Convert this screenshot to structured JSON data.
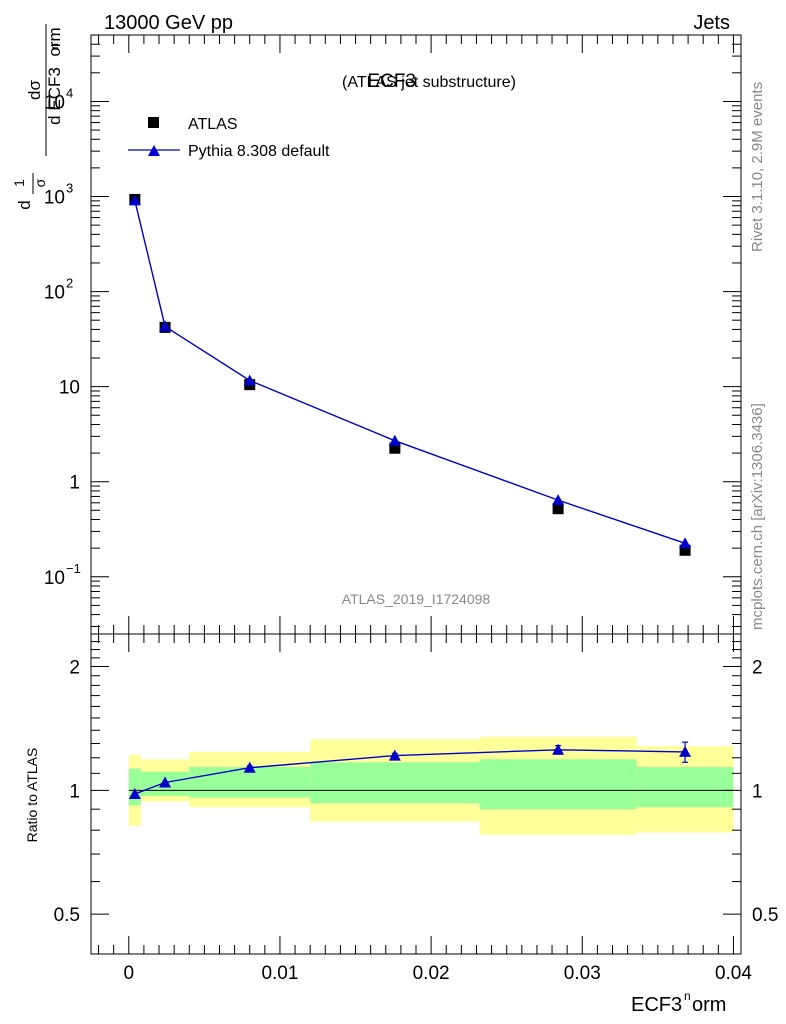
{
  "header": {
    "left_label": "13000 GeV pp",
    "right_label": "Jets"
  },
  "side_labels": {
    "rivet": "Rivet 3.1.10,  2.9M events",
    "mcplots": "mcplots.cern.ch [arXiv:1306.3436]"
  },
  "chart_data": [
    {
      "type": "scatter",
      "panel": "main",
      "title": "ECF3",
      "subtitle": "(ATLAS jet substructure)",
      "watermark": "ATLAS_2019_I1724098",
      "ylabel_parts": {
        "frac_top": "1",
        "frac_bottom": "σ",
        "d1": "d",
        "dsigma": "dσ",
        "denominator": "d ECF3",
        "sup": "n",
        "suffix": "orm"
      },
      "xlim": [
        -0.0025,
        0.0405
      ],
      "ylim": [
        0.025,
        50000
      ],
      "yscale": "log",
      "yticks": [
        {
          "value": 0.1,
          "label": "10",
          "sup": "−1"
        },
        {
          "value": 1,
          "label": "1",
          "sup": ""
        },
        {
          "value": 10,
          "label": "10",
          "sup": ""
        },
        {
          "value": 100,
          "label": "10",
          "sup": "2"
        },
        {
          "value": 1000,
          "label": "10",
          "sup": "3"
        },
        {
          "value": 10000,
          "label": "10",
          "sup": "4"
        }
      ],
      "legend_position": "top-left",
      "series": [
        {
          "name": "ATLAS",
          "marker": "square",
          "color": "#000000",
          "x": [
            0.0004,
            0.0024,
            0.008,
            0.0176,
            0.0284,
            0.0368
          ],
          "y": [
            930,
            42,
            10.5,
            2.25,
            0.52,
            0.19
          ]
        },
        {
          "name": "Pythia 8.308 default",
          "marker": "triangle",
          "color": "#0000cc",
          "x": [
            0.0004,
            0.0024,
            0.008,
            0.0176,
            0.0284,
            0.0368
          ],
          "y": [
            910,
            43,
            11.6,
            2.7,
            0.64,
            0.225
          ]
        }
      ]
    },
    {
      "type": "line",
      "panel": "ratio",
      "ylabel": "Ratio to ATLAS",
      "xlabel_parts": {
        "main": "ECF3",
        "sup": "n",
        "suffix": "orm"
      },
      "xlim": [
        -0.0025,
        0.0405
      ],
      "ylim": [
        0.4,
        2.4
      ],
      "yscale": "log",
      "yticks": [
        {
          "value": 0.5,
          "label": "0.5"
        },
        {
          "value": 1,
          "label": "1"
        },
        {
          "value": 2,
          "label": "2"
        }
      ],
      "xticks": [
        {
          "value": 0,
          "label": "0"
        },
        {
          "value": 0.01,
          "label": "0.01"
        },
        {
          "value": 0.02,
          "label": "0.02"
        },
        {
          "value": 0.03,
          "label": "0.03"
        },
        {
          "value": 0.04,
          "label": "0.04"
        }
      ],
      "bands": [
        {
          "x0": 0.0,
          "x1": 0.0008,
          "yellow": [
            0.82,
            1.22
          ],
          "green": [
            0.92,
            1.13
          ]
        },
        {
          "x0": 0.0008,
          "x1": 0.004,
          "yellow": [
            0.94,
            1.19
          ],
          "green": [
            0.97,
            1.11
          ]
        },
        {
          "x0": 0.004,
          "x1": 0.012,
          "yellow": [
            0.91,
            1.24
          ],
          "green": [
            0.96,
            1.14
          ]
        },
        {
          "x0": 0.012,
          "x1": 0.0232,
          "yellow": [
            0.84,
            1.33
          ],
          "green": [
            0.93,
            1.17
          ]
        },
        {
          "x0": 0.0232,
          "x1": 0.0336,
          "yellow": [
            0.78,
            1.35
          ],
          "green": [
            0.9,
            1.19
          ]
        },
        {
          "x0": 0.0336,
          "x1": 0.04,
          "yellow": [
            0.79,
            1.28
          ],
          "green": [
            0.91,
            1.14
          ]
        }
      ],
      "series": [
        {
          "name": "Pythia 8.308 default",
          "color": "#0000cc",
          "x": [
            0.0004,
            0.0024,
            0.008,
            0.0176,
            0.0284,
            0.0368
          ],
          "y": [
            0.98,
            1.045,
            1.135,
            1.215,
            1.255,
            1.24
          ],
          "err": [
            0.008,
            0.008,
            0.012,
            0.015,
            0.03,
            0.07
          ]
        }
      ]
    }
  ]
}
